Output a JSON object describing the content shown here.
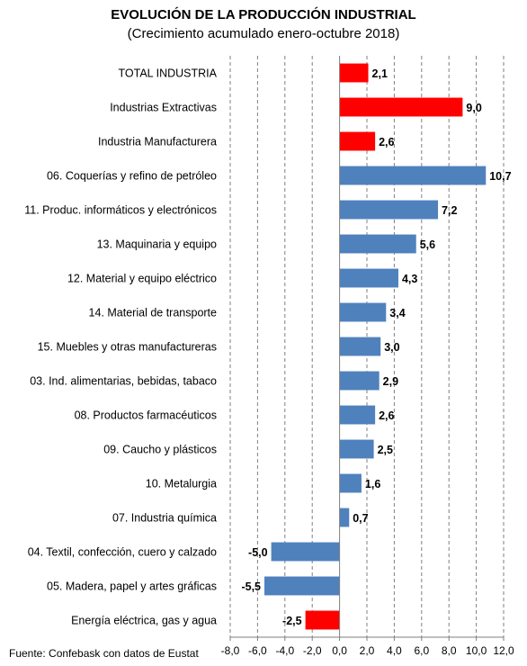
{
  "chart_data": {
    "type": "bar",
    "orientation": "horizontal",
    "title": "EVOLUCIÓN DE LA PRODUCCIÓN INDUSTRIAL",
    "subtitle": "(Crecimiento acumulado enero-octubre 2018)",
    "source": "Fuente: Confebask con datos de Eustat",
    "xlim": [
      -8,
      12
    ],
    "x_ticks": [
      -8,
      -6,
      -4,
      -2,
      0,
      2,
      4,
      6,
      8,
      10,
      12
    ],
    "x_tick_labels": [
      "-8,0",
      "-6,0",
      "-4,0",
      "-2,0",
      "0,0",
      "2,0",
      "4,0",
      "6,0",
      "8,0",
      "10,0",
      "12,0"
    ],
    "grid": "vertical-dashed",
    "colors": {
      "highlight": "#ff0000",
      "default": "#4f81bd"
    },
    "categories": [
      "TOTAL INDUSTRIA",
      "Industrias Extractivas",
      "Industria Manufacturera",
      "06. Coquerías y refino de petróleo",
      "11. Produc. informáticos y electrónicos",
      "13. Maquinaria y equipo",
      "12. Material y equipo eléctrico",
      "14. Material de transporte",
      "15. Muebles y otras manufactureras",
      "03. Ind. alimentarias, bebidas, tabaco",
      "08. Productos farmacéuticos",
      "09. Caucho y plásticos",
      "10. Metalurgia",
      "07. Industria química",
      "04. Textil, confección, cuero y calzado",
      "05. Madera, papel y artes gráficas",
      "Energía eléctrica, gas y agua"
    ],
    "values": [
      2.1,
      9.0,
      2.6,
      10.7,
      7.2,
      5.6,
      4.3,
      3.4,
      3.0,
      2.9,
      2.6,
      2.5,
      1.6,
      0.7,
      -5.0,
      -5.5,
      -2.5
    ],
    "value_labels": [
      "2,1",
      "9,0",
      "2,6",
      "10,7",
      "7,2",
      "5,6",
      "4,3",
      "3,4",
      "3,0",
      "2,9",
      "2,6",
      "2,5",
      "1,6",
      "0,7",
      "-5,0",
      "-5,5",
      "-2,5"
    ],
    "highlight": [
      true,
      true,
      true,
      false,
      false,
      false,
      false,
      false,
      false,
      false,
      false,
      false,
      false,
      false,
      false,
      false,
      true
    ]
  }
}
